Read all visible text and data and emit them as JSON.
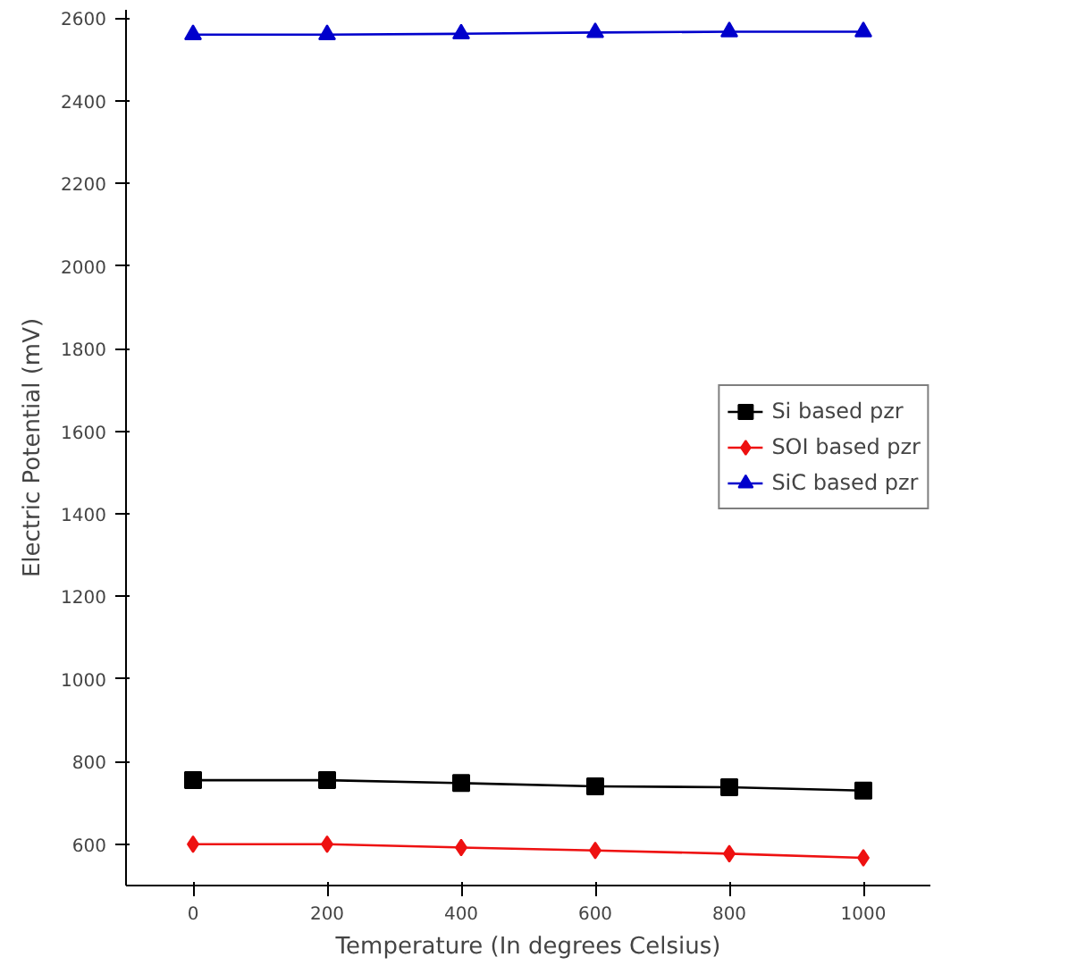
{
  "chart_data": {
    "type": "line",
    "xlabel": "Temperature (In degrees Celsius)",
    "ylabel": "Electric Potential (mV)",
    "x": [
      0,
      200,
      400,
      600,
      800,
      1000
    ],
    "series": [
      {
        "name": "Si based pzr",
        "color": "#000000",
        "marker": "square",
        "values": [
          755,
          755,
          748,
          740,
          738,
          730
        ]
      },
      {
        "name": "SOI based pzr",
        "color": "#ee1111",
        "marker": "diamond",
        "values": [
          600,
          600,
          592,
          585,
          577,
          567
        ]
      },
      {
        "name": "SiC based pzr",
        "color": "#0000cc",
        "marker": "triangle",
        "values": [
          2560,
          2560,
          2562,
          2565,
          2567,
          2567
        ]
      }
    ],
    "xlim": [
      -100,
      1100
    ],
    "xticks": [
      0,
      200,
      400,
      600,
      800,
      1000
    ],
    "ylim": [
      500,
      2620
    ],
    "yticks": [
      600,
      800,
      1000,
      1200,
      1400,
      1600,
      1800,
      2000,
      2200,
      2400,
      2600
    ],
    "grid": false,
    "legend": "right",
    "line_style": "solid"
  }
}
